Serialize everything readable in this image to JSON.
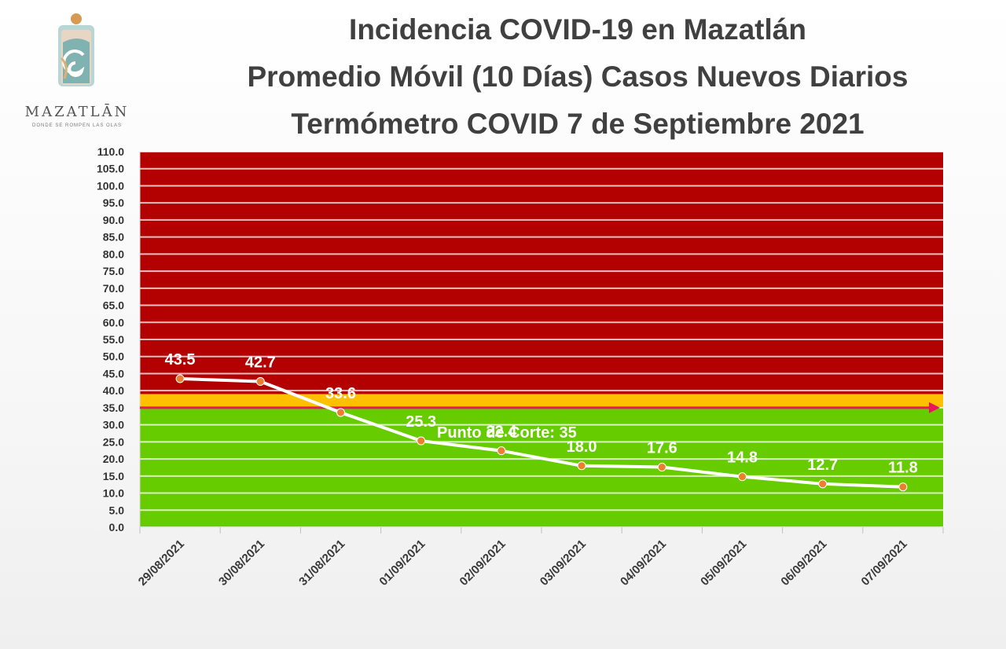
{
  "header": {
    "title_line1": "Incidencia COVID-19 en Mazatlán",
    "title_line2": "Promedio Móvil (10 Días) Casos Nuevos Diarios",
    "title_line3": "Termómetro COVID 7 de Septiembre 2021"
  },
  "logo": {
    "word": "MAZATLĀN",
    "tagline": "DONDE SE ROMPEN LAS OLAS"
  },
  "colors": {
    "red_zone": "#b30000",
    "yellow_zone": "#ffc000",
    "green_zone": "#66cc00",
    "line": "#ffffff",
    "marker": "#ed7d31",
    "cut_arrow": "#e8175d"
  },
  "chart_data": {
    "type": "line",
    "categories": [
      "29/08/2021",
      "30/08/2021",
      "31/08/2021",
      "01/09/2021",
      "02/09/2021",
      "03/09/2021",
      "04/09/2021",
      "05/09/2021",
      "06/09/2021",
      "07/09/2021"
    ],
    "series": [
      {
        "values": [
          43.5,
          42.7,
          33.6,
          25.3,
          22.4,
          18.0,
          17.6,
          14.8,
          12.7,
          11.8
        ],
        "labels": [
          "43.5",
          "42.7",
          "33.6",
          "25.3",
          "22.4",
          "18.0",
          "17.6",
          "14.8",
          "12.7",
          "11.8"
        ]
      }
    ],
    "ylim": [
      0,
      110
    ],
    "ytick_step": 5,
    "ytick_labels": [
      "0.0",
      "5.0",
      "10.0",
      "15.0",
      "20.0",
      "25.0",
      "30.0",
      "35.0",
      "40.0",
      "45.0",
      "50.0",
      "55.0",
      "60.0",
      "65.0",
      "70.0",
      "75.0",
      "80.0",
      "85.0",
      "90.0",
      "95.0",
      "100.0",
      "105.0",
      "110.0"
    ],
    "zones": [
      {
        "from": 0,
        "to": 35,
        "color": "#66cc00"
      },
      {
        "from": 35,
        "to": 39,
        "color": "#ffc000"
      },
      {
        "from": 39,
        "to": 110,
        "color": "#b30000"
      }
    ],
    "cut_point": {
      "value": 35,
      "label": "Punto de Corte: 35"
    },
    "grid": true,
    "legend": "none",
    "xlabel": "",
    "ylabel": "",
    "title": ""
  }
}
